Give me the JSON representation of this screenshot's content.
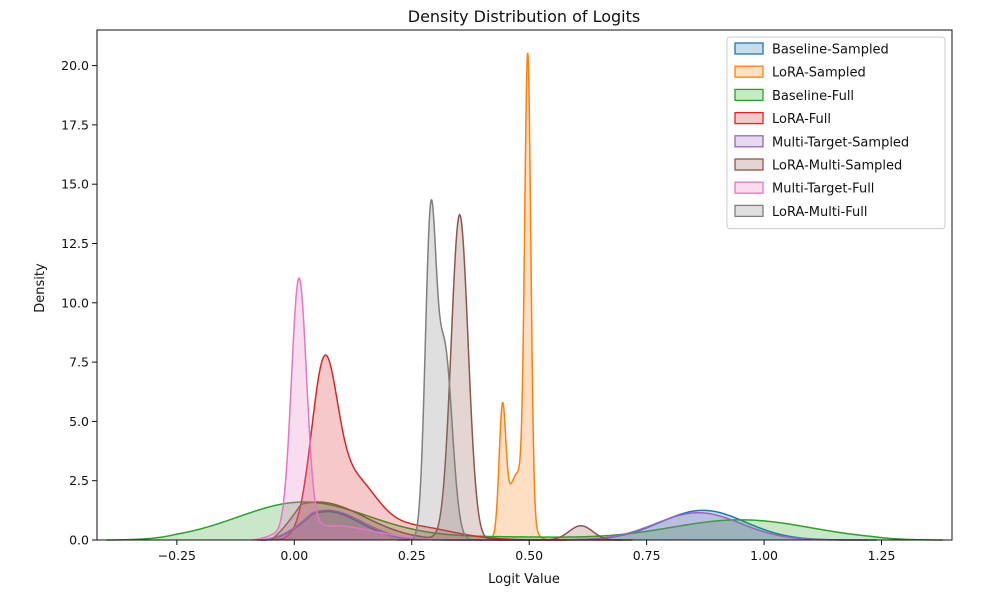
{
  "chart_data": {
    "type": "area",
    "title": "Density Distribution of Logits",
    "xlabel": "Logit Value",
    "ylabel": "Density",
    "xlim": [
      -0.42,
      1.4
    ],
    "ylim": [
      0,
      21.5
    ],
    "xticks": [
      -0.25,
      0.0,
      0.25,
      0.5,
      0.75,
      1.0,
      1.25
    ],
    "xtick_labels": [
      "−0.25",
      "0.00",
      "0.25",
      "0.50",
      "0.75",
      "1.00",
      "1.25"
    ],
    "yticks": [
      0,
      2.5,
      5,
      7.5,
      10,
      12.5,
      15,
      17.5,
      20
    ],
    "ytick_labels": [
      "0.0",
      "2.5",
      "5.0",
      "7.5",
      "10.0",
      "12.5",
      "15.0",
      "17.5",
      "20.0"
    ],
    "legend_position": "top-right",
    "series": [
      {
        "name": "Baseline-Sampled",
        "color": "#1f77b4",
        "x_range": [
          -0.07,
          1.24
        ],
        "components": [
          {
            "mu": 0.07,
            "sigma": 0.07,
            "amp": 1.2
          },
          {
            "mu": 0.87,
            "sigma": 0.09,
            "amp": 1.25
          }
        ]
      },
      {
        "name": "LoRA-Sampled",
        "color": "#ff7f0e",
        "x_range": [
          0.39,
          0.58
        ],
        "components": [
          {
            "mu": 0.497,
            "sigma": 0.0065,
            "amp": 19.0
          },
          {
            "mu": 0.443,
            "sigma": 0.007,
            "amp": 5.0
          },
          {
            "mu": 0.475,
            "sigma": 0.02,
            "amp": 2.8
          }
        ]
      },
      {
        "name": "Baseline-Full",
        "color": "#2ca02c",
        "x_range": [
          -0.4,
          1.38
        ],
        "components": [
          {
            "mu": 0.02,
            "sigma": 0.14,
            "amp": 1.6
          },
          {
            "mu": 0.95,
            "sigma": 0.15,
            "amp": 0.85
          },
          {
            "mu": 0.45,
            "sigma": 0.15,
            "amp": 0.12
          }
        ]
      },
      {
        "name": "LoRA-Full",
        "color": "#d62728",
        "x_range": [
          -0.08,
          0.7
        ],
        "components": [
          {
            "mu": 0.063,
            "sigma": 0.027,
            "amp": 6.4
          },
          {
            "mu": 0.12,
            "sigma": 0.05,
            "amp": 2.4
          },
          {
            "mu": 0.24,
            "sigma": 0.09,
            "amp": 0.6
          }
        ]
      },
      {
        "name": "Multi-Target-Sampled",
        "color": "#9467bd",
        "x_range": [
          -0.07,
          1.22
        ],
        "components": [
          {
            "mu": 0.07,
            "sigma": 0.075,
            "amp": 1.25
          },
          {
            "mu": 0.86,
            "sigma": 0.09,
            "amp": 1.15
          }
        ]
      },
      {
        "name": "LoRA-Multi-Sampled",
        "color": "#8c564b",
        "x_range": [
          -0.05,
          0.72
        ],
        "components": [
          {
            "mu": 0.352,
            "sigma": 0.018,
            "amp": 13.7
          },
          {
            "mu": 0.05,
            "sigma": 0.1,
            "amp": 1.6
          },
          {
            "mu": 0.61,
            "sigma": 0.025,
            "amp": 0.6
          }
        ]
      },
      {
        "name": "Multi-Target-Full",
        "color": "#e377c2",
        "x_range": [
          -0.09,
          0.42
        ],
        "components": [
          {
            "mu": 0.01,
            "sigma": 0.016,
            "amp": 10.6
          },
          {
            "mu": 0.08,
            "sigma": 0.09,
            "amp": 0.6
          }
        ]
      },
      {
        "name": "LoRA-Multi-Full",
        "color": "#7f7f7f",
        "x_range": [
          0.22,
          0.4
        ],
        "components": [
          {
            "mu": 0.29,
            "sigma": 0.0115,
            "amp": 12.8
          },
          {
            "mu": 0.32,
            "sigma": 0.016,
            "amp": 8.0
          }
        ]
      }
    ]
  }
}
